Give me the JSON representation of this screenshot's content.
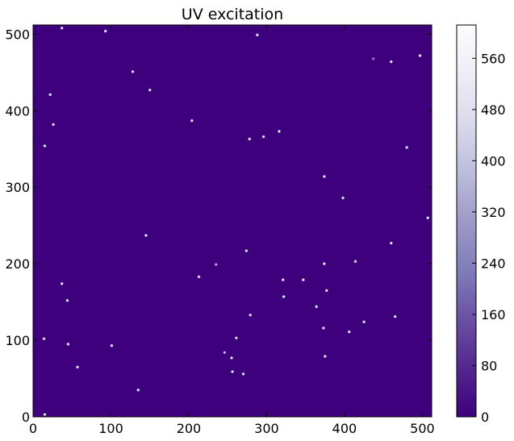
{
  "chart_data": {
    "type": "heatmap",
    "title": "UV excitation",
    "xlabel": "",
    "ylabel": "",
    "xlim": [
      0,
      512
    ],
    "ylim": [
      0,
      512
    ],
    "xticks": [
      "0",
      "100",
      "200",
      "300",
      "400",
      "500"
    ],
    "xtick_values": [
      0,
      100,
      200,
      300,
      400,
      500
    ],
    "yticks": [
      "0",
      "100",
      "200",
      "300",
      "400",
      "500"
    ],
    "ytick_values": [
      0,
      100,
      200,
      300,
      400,
      500
    ],
    "colormap": "Purples_r",
    "background_value": 0,
    "colorbar": {
      "range": [
        0,
        612
      ],
      "ticks": [
        "0",
        "80",
        "160",
        "240",
        "320",
        "400",
        "480",
        "560"
      ],
      "tick_values": [
        0,
        80,
        160,
        240,
        320,
        400,
        480,
        560
      ],
      "colors": [
        "#3f007d",
        "#54278f",
        "#6a51a3",
        "#807dba",
        "#9e9ac8",
        "#bcbddc",
        "#dadaeb",
        "#efedf5",
        "#fcfbfd"
      ]
    },
    "points": [
      [
        37,
        508,
        600
      ],
      [
        93,
        504,
        600
      ],
      [
        288,
        499,
        600
      ],
      [
        497,
        472,
        600
      ],
      [
        437,
        468,
        300
      ],
      [
        460,
        464,
        580
      ],
      [
        128,
        451,
        600
      ],
      [
        150,
        427,
        560
      ],
      [
        22,
        421,
        600
      ],
      [
        26,
        382,
        600
      ],
      [
        204,
        387,
        600
      ],
      [
        316,
        373,
        600
      ],
      [
        296,
        366,
        600
      ],
      [
        278,
        363,
        600
      ],
      [
        15,
        354,
        600
      ],
      [
        480,
        352,
        600
      ],
      [
        374,
        314,
        600
      ],
      [
        398,
        286,
        600
      ],
      [
        507,
        260,
        600
      ],
      [
        145,
        237,
        600
      ],
      [
        460,
        227,
        600
      ],
      [
        274,
        217,
        600
      ],
      [
        235,
        199,
        380
      ],
      [
        374,
        200,
        600
      ],
      [
        414,
        203,
        600
      ],
      [
        213,
        183,
        600
      ],
      [
        321,
        179,
        600
      ],
      [
        347,
        179,
        600
      ],
      [
        37,
        174,
        600
      ],
      [
        377,
        165,
        600
      ],
      [
        322,
        157,
        600
      ],
      [
        364,
        144,
        600
      ],
      [
        44,
        152,
        600
      ],
      [
        279,
        133,
        600
      ],
      [
        465,
        131,
        600
      ],
      [
        425,
        124,
        600
      ],
      [
        373,
        116,
        600
      ],
      [
        406,
        111,
        600
      ],
      [
        14,
        102,
        600
      ],
      [
        45,
        95,
        600
      ],
      [
        101,
        93,
        600
      ],
      [
        261,
        103,
        580
      ],
      [
        246,
        84,
        420
      ],
      [
        255,
        77,
        600
      ],
      [
        375,
        79,
        600
      ],
      [
        57,
        65,
        600
      ],
      [
        256,
        59,
        600
      ],
      [
        270,
        56,
        600
      ],
      [
        135,
        35,
        600
      ],
      [
        15,
        3,
        600
      ]
    ]
  }
}
